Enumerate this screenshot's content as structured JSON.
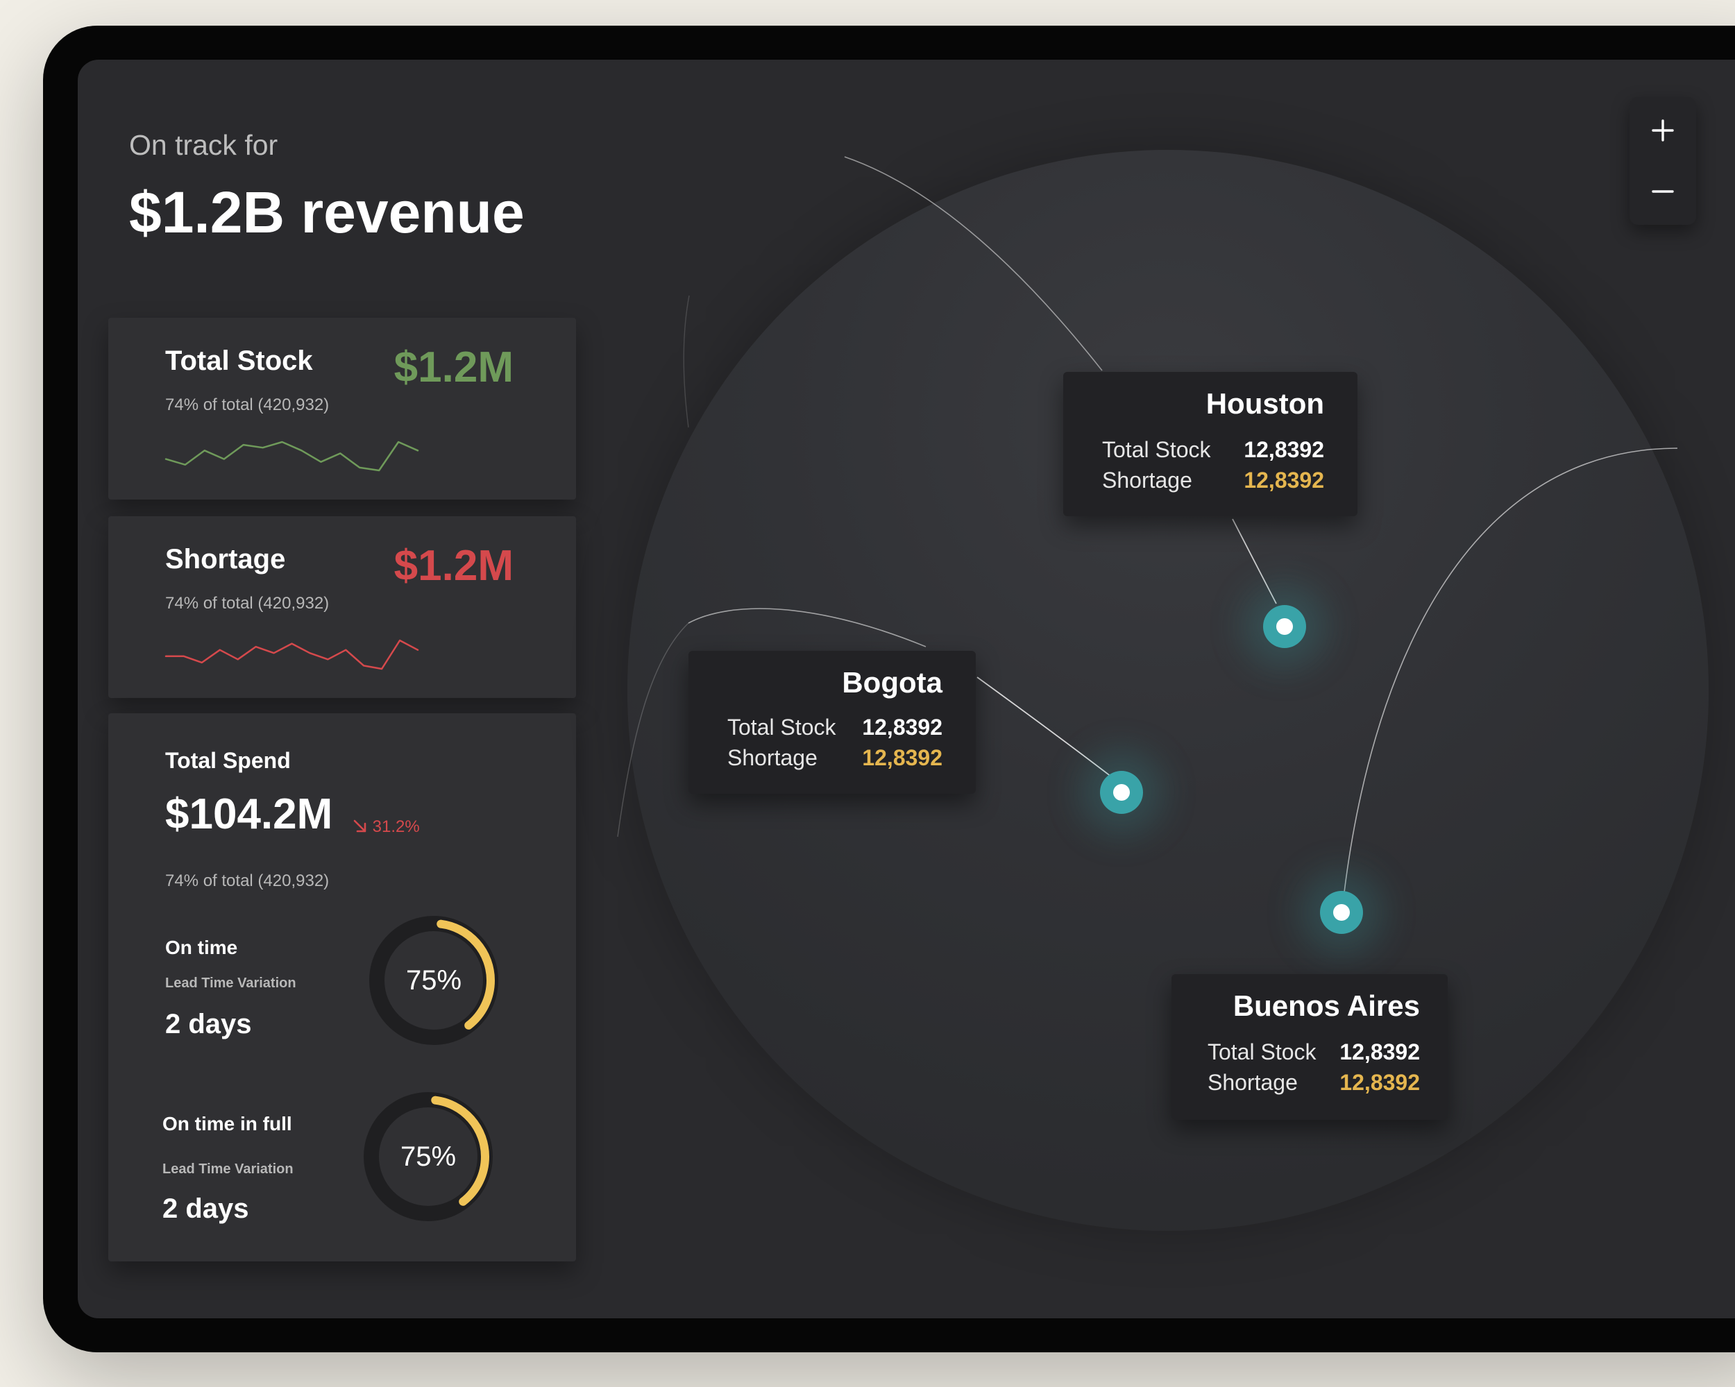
{
  "header": {
    "subtitle": "On track for",
    "title": "$1.2B revenue"
  },
  "cards": {
    "total_stock": {
      "title": "Total Stock",
      "value": "$1.2M",
      "subtitle": "74% of total (420,932)",
      "color": "#6f9a5a",
      "sparkline": [
        6,
        4,
        9,
        6,
        11,
        10,
        12,
        9,
        5,
        8,
        3,
        2,
        12,
        9
      ]
    },
    "shortage": {
      "title": "Shortage",
      "value": "$1.2M",
      "subtitle": "74% of total (420,932)",
      "color": "#d5494c",
      "sparkline": [
        6,
        6,
        4,
        8,
        5,
        9,
        7,
        10,
        7,
        5,
        8,
        3,
        2,
        11,
        8
      ]
    },
    "total_spend": {
      "title": "Total Spend",
      "value": "$104.2M",
      "trend_icon": "arrow-down-right-icon",
      "trend": "31.2%",
      "subtitle": "74% of total (420,932)",
      "kpis": [
        {
          "label": "On time",
          "sub": "Lead Time Variation",
          "days": "2 days",
          "percent_label": "75%",
          "percent": 75
        },
        {
          "label": "On time in full",
          "sub": "Lead Time Variation",
          "days": "2 days",
          "percent_label": "75%",
          "percent": 75
        }
      ]
    }
  },
  "map": {
    "locations": [
      {
        "city": "Houston",
        "stock_label": "Total Stock",
        "stock_value": "12,8392",
        "shortage_label": "Shortage",
        "shortage_value": "12,8392"
      },
      {
        "city": "Bogota",
        "stock_label": "Total Stock",
        "stock_value": "12,8392",
        "shortage_label": "Shortage",
        "shortage_value": "12,8392"
      },
      {
        "city": "Buenos Aires",
        "stock_label": "Total Stock",
        "stock_value": "12,8392",
        "shortage_label": "Shortage",
        "shortage_value": "12,8392"
      }
    ],
    "marker_color": "#39a3a8",
    "shortage_color": "#e5b64f",
    "zoom_in_icon": "plus-icon",
    "zoom_out_icon": "minus-icon"
  },
  "colors": {
    "ring_track": "#1f1f21",
    "ring_fill": "#f0c458"
  }
}
